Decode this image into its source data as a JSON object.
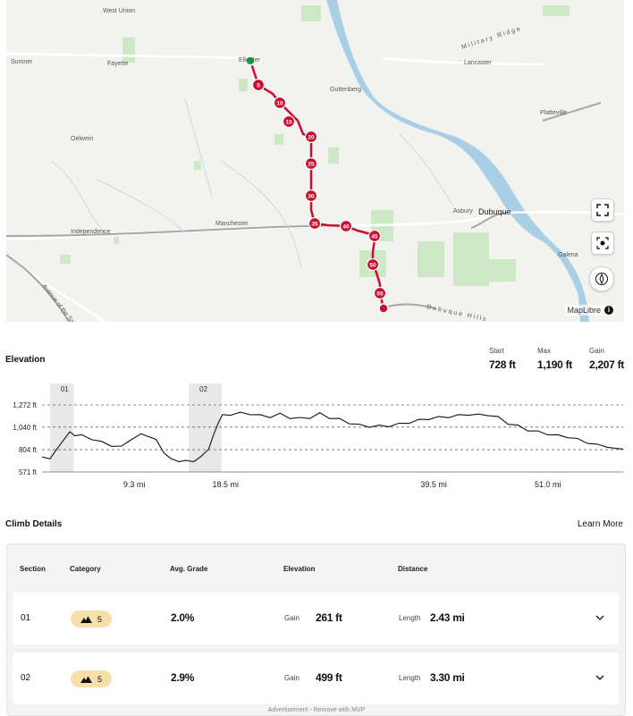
{
  "map": {
    "places": [
      {
        "name": "West Union"
      },
      {
        "name": "Sumner"
      },
      {
        "name": "Fayette"
      },
      {
        "name": "Elkader"
      },
      {
        "name": "Military Ridge"
      },
      {
        "name": "Lancaster"
      },
      {
        "name": "Guttenberg"
      },
      {
        "name": "Oelwein"
      },
      {
        "name": "Platteville"
      },
      {
        "name": "Manchester"
      },
      {
        "name": "Independence"
      },
      {
        "name": "Asbury"
      },
      {
        "name": "Dubuque"
      },
      {
        "name": "Galena"
      },
      {
        "name": "Dubuque Hills"
      },
      {
        "name": "Avenue of the Saints"
      }
    ],
    "mile_markers": [
      "5",
      "10",
      "15",
      "20",
      "25",
      "30",
      "35",
      "40",
      "45",
      "50",
      "55"
    ],
    "attribution": "MapLibre",
    "route_color": "#c8102e"
  },
  "elevation": {
    "title": "Elevation",
    "stats": [
      {
        "label": "Start",
        "value": "728 ft"
      },
      {
        "label": "Max",
        "value": "1,190 ft"
      },
      {
        "label": "Gain",
        "value": "2,207 ft"
      }
    ]
  },
  "chart_data": {
    "type": "line",
    "title": "Elevation",
    "y_ticks": [
      "1,272 ft",
      "1,040 ft",
      "804 ft",
      "571 ft"
    ],
    "y_tick_values": [
      1272,
      1040,
      804,
      571
    ],
    "x_ticks": [
      "9.3 mi",
      "18.5 mi",
      "39.5 mi",
      "51.0 mi"
    ],
    "x_tick_values": [
      9.3,
      18.5,
      39.5,
      51.0
    ],
    "xlim": [
      0,
      58.6
    ],
    "ylim": [
      571,
      1272
    ],
    "climb_regions": [
      {
        "label": "01",
        "start": 0.8,
        "end": 3.2
      },
      {
        "label": "02",
        "start": 14.8,
        "end": 18.1
      }
    ],
    "series": [
      {
        "x": [
          0,
          0.8,
          1.5,
          2.2,
          2.8,
          3.3,
          4,
          5,
          6,
          7,
          8,
          9,
          10,
          10.8,
          11.5,
          12.3,
          13,
          13.8,
          14.5,
          15.3,
          16,
          16.8,
          17.3,
          17.8,
          18.2,
          19,
          20,
          21,
          22,
          23,
          24,
          25,
          26,
          27,
          28,
          29,
          30,
          31,
          32,
          33,
          34,
          35,
          36,
          37,
          38,
          39,
          40,
          41,
          42,
          43,
          44,
          45,
          46,
          47,
          48,
          49,
          50,
          51,
          52,
          53,
          54,
          55,
          56,
          57,
          58.6
        ],
        "y": [
          728,
          720,
          800,
          920,
          980,
          960,
          950,
          920,
          880,
          850,
          830,
          920,
          960,
          950,
          900,
          780,
          700,
          690,
          680,
          690,
          720,
          820,
          950,
          1100,
          1160,
          1175,
          1185,
          1180,
          1160,
          1150,
          1175,
          1140,
          1130,
          1140,
          1180,
          1140,
          1120,
          1085,
          1060,
          1050,
          1050,
          1055,
          1070,
          1090,
          1110,
          1130,
          1140,
          1150,
          1160,
          1175,
          1165,
          1170,
          1140,
          1080,
          1050,
          1010,
          990,
          970,
          950,
          940,
          910,
          880,
          850,
          840,
          810
        ]
      }
    ]
  },
  "climb": {
    "title": "Climb Details",
    "learn_more": "Learn More",
    "headers": {
      "section": "Section",
      "category": "Category",
      "grade": "Avg. Grade",
      "elevation": "Elevation",
      "distance": "Distance"
    },
    "rows": [
      {
        "section": "01",
        "category": "5",
        "grade": "2.0%",
        "gain_label": "Gain",
        "gain": "261 ft",
        "length_label": "Length",
        "length": "2.43 mi"
      },
      {
        "section": "02",
        "category": "5",
        "grade": "2.9%",
        "gain_label": "Gain",
        "gain": "499 ft",
        "length_label": "Length",
        "length": "3.30 mi"
      }
    ]
  },
  "ad": "Advertisement - Remove with MVP"
}
